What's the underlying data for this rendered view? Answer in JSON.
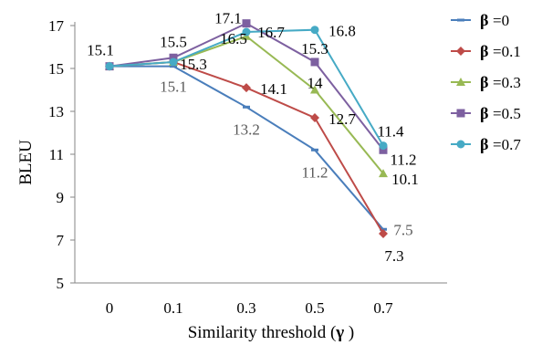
{
  "chart_data": {
    "type": "line",
    "title": "",
    "xlabel_prefix": "Similarity  threshold (",
    "xlabel_symbol": "γ",
    "xlabel_suffix": " )",
    "ylabel": "BLEU",
    "categories": [
      "0",
      "0.1",
      "0.3",
      "0.5",
      "0.7"
    ],
    "ylim": [
      5,
      17
    ],
    "yticks": [
      5,
      7,
      9,
      11,
      13,
      15,
      17
    ],
    "grid": false,
    "legend_position": "right",
    "series": [
      {
        "name": "=0",
        "color": "#4a7ebb",
        "marker": "dash",
        "values": [
          15.1,
          15.1,
          13.2,
          11.2,
          7.5
        ],
        "labels": [
          "",
          "15.1",
          "13.2",
          "11.2",
          "7.5"
        ],
        "label_color": "#595959"
      },
      {
        "name": "=0.1",
        "color": "#be4b48",
        "marker": "diamond",
        "values": [
          15.1,
          15.3,
          14.1,
          12.7,
          7.3
        ],
        "labels": [
          "",
          "",
          "14.1",
          "12.7",
          "7.3"
        ],
        "label_color": "#000000"
      },
      {
        "name": "=0.3",
        "color": "#98b954",
        "marker": "triangle",
        "values": [
          15.1,
          15.3,
          16.5,
          14.0,
          10.1
        ],
        "labels": [
          "",
          "",
          "16.5",
          "14",
          "10.1"
        ],
        "label_color": "#000000"
      },
      {
        "name": "=0.5",
        "color": "#7d60a0",
        "marker": "square",
        "values": [
          15.1,
          15.5,
          17.1,
          15.3,
          11.2
        ],
        "labels": [
          "15.1",
          "15.5",
          "17.1",
          "15.3",
          "11.2"
        ],
        "label_color": "#000000"
      },
      {
        "name": "=0.7",
        "color": "#46aac5",
        "marker": "circle",
        "values": [
          15.1,
          15.3,
          16.7,
          16.8,
          11.4
        ],
        "labels": [
          "",
          "15.3",
          "16.7",
          "16.8",
          "11.4"
        ],
        "label_color": "#000000"
      }
    ],
    "legend_symbol": "β"
  }
}
